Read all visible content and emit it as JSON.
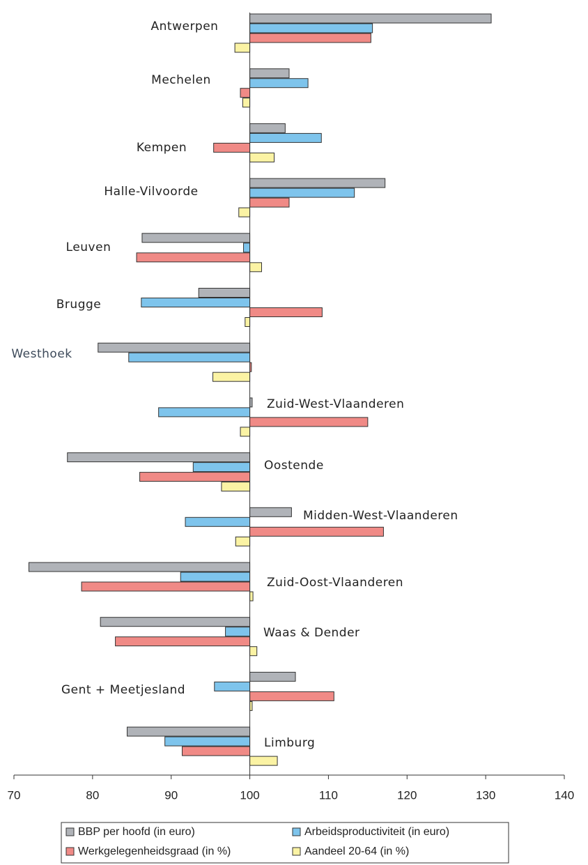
{
  "chart_data": {
    "type": "bar",
    "orientation": "horizontal",
    "baseline": 100,
    "categories": [
      "Antwerpen",
      "Mechelen",
      "Kempen",
      "Halle-Vilvoorde",
      "Leuven",
      "Brugge",
      "Westhoek",
      "Zuid-West-Vlaanderen",
      "Oostende",
      "Midden-West-Vlaanderen",
      "Zuid-Oost-Vlaanderen",
      "Waas & Dender",
      "Gent + Meetjesland",
      "Limburg"
    ],
    "series": [
      {
        "name": "BBP per hoofd (in euro)",
        "color": "#b0b3b8",
        "values": [
          130.7,
          105.0,
          104.5,
          117.2,
          86.3,
          93.5,
          80.7,
          100.3,
          76.8,
          105.3,
          71.9,
          81.0,
          105.8,
          84.4
        ]
      },
      {
        "name": "Arbeidsproductiviteit (in euro)",
        "color": "#7ec4ec",
        "values": [
          115.6,
          107.4,
          109.1,
          113.3,
          99.2,
          86.2,
          84.6,
          88.4,
          92.8,
          91.8,
          91.2,
          96.9,
          95.5,
          89.2
        ]
      },
      {
        "name": "Werkgelegenheidsgraad (in %)",
        "color": "#f08a86",
        "values": [
          115.4,
          98.8,
          95.4,
          105.0,
          85.6,
          109.2,
          100.2,
          115.0,
          86.0,
          117.0,
          78.6,
          82.9,
          110.7,
          91.4
        ]
      },
      {
        "name": "Aandeel 20-64 (in %)",
        "color": "#fbf3a4",
        "values": [
          98.1,
          99.1,
          103.1,
          98.6,
          101.5,
          99.4,
          95.3,
          98.8,
          96.4,
          98.2,
          100.4,
          100.9,
          100.3,
          103.5
        ]
      }
    ],
    "xlim": [
      70,
      140
    ],
    "xticks": [
      70,
      80,
      90,
      100,
      110,
      120,
      130,
      140
    ]
  }
}
